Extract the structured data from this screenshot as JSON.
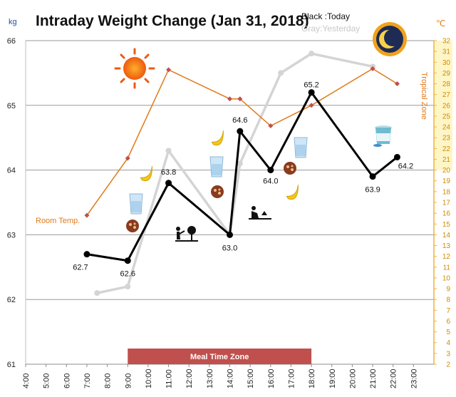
{
  "chart_data": {
    "type": "line",
    "title": "Intraday Weight Change (Jan 31, 2018)",
    "legend": {
      "today": "Black :Today",
      "yesterday": "Gray:Yesterday",
      "placement": "top-right"
    },
    "left_axis": {
      "unit": "kg",
      "min": 61,
      "max": 66,
      "ticks": [
        61,
        62,
        63,
        64,
        65,
        66
      ]
    },
    "right_axis": {
      "unit": "℃",
      "label": "Tropical Zone",
      "min": 2,
      "max": 32,
      "ticks": [
        2,
        3,
        4,
        5,
        6,
        7,
        8,
        9,
        10,
        11,
        12,
        13,
        14,
        15,
        16,
        17,
        18,
        19,
        20,
        21,
        22,
        23,
        24,
        25,
        26,
        27,
        28,
        29,
        30,
        31,
        32
      ]
    },
    "x_axis": {
      "min": 4,
      "max": 24,
      "tick_values": [
        4,
        5,
        6,
        7,
        8,
        9,
        10,
        11,
        12,
        13,
        14,
        15,
        16,
        17,
        18,
        19,
        20,
        21,
        22,
        23
      ],
      "tick_labels": [
        "4:00",
        "5:00",
        "6:00",
        "7:00",
        "8:00",
        "9:00",
        "10:00",
        "11:00",
        "12:00",
        "13:00",
        "14:00",
        "15:00",
        "16:00",
        "17:00",
        "18:00",
        "19:00",
        "20:00",
        "21:00",
        "22:00",
        "23:00"
      ]
    },
    "grid": true,
    "meal_zone": {
      "label": "Meal Time Zone",
      "from": 9,
      "to": 18,
      "color": "#c0504d"
    },
    "tropical_zone": {
      "label": "Tropical Zone",
      "from": 20,
      "to": 32,
      "color": "#fff6c8"
    },
    "series": [
      {
        "name": "Today",
        "color": "#000000",
        "x": [
          7,
          9,
          11,
          14,
          14.5,
          16,
          18,
          21,
          22.2
        ],
        "y": [
          62.7,
          62.6,
          63.8,
          63.0,
          64.6,
          64.0,
          65.2,
          63.9,
          64.2
        ],
        "labels": [
          "62.7",
          "62.6",
          "63.8",
          "63.0",
          "64.6",
          "64.0",
          "65.2",
          "63.9",
          "64.2"
        ]
      },
      {
        "name": "Yesterday",
        "color": "#d4d4d4",
        "x": [
          7.5,
          9,
          11,
          14,
          14.5,
          16.5,
          18,
          21
        ],
        "y": [
          62.1,
          62.2,
          64.3,
          63.0,
          64.1,
          65.5,
          65.8,
          65.6
        ]
      },
      {
        "name": "Room Temp.",
        "color": "#e07a1a",
        "axis": "right",
        "x": [
          7,
          9,
          11,
          14,
          14.5,
          16,
          18,
          21,
          22.2
        ],
        "y": [
          15.8,
          21.1,
          29.3,
          26.6,
          26.6,
          24.1,
          26.0,
          29.4,
          28.0
        ]
      }
    ],
    "annotations": {
      "room_temp": "Room Temp."
    },
    "icons": [
      "sun-icon",
      "moon-icon",
      "banana-icon",
      "water-glass-icon",
      "cookie-icon",
      "gardening-icon",
      "yogurt-icon"
    ]
  }
}
